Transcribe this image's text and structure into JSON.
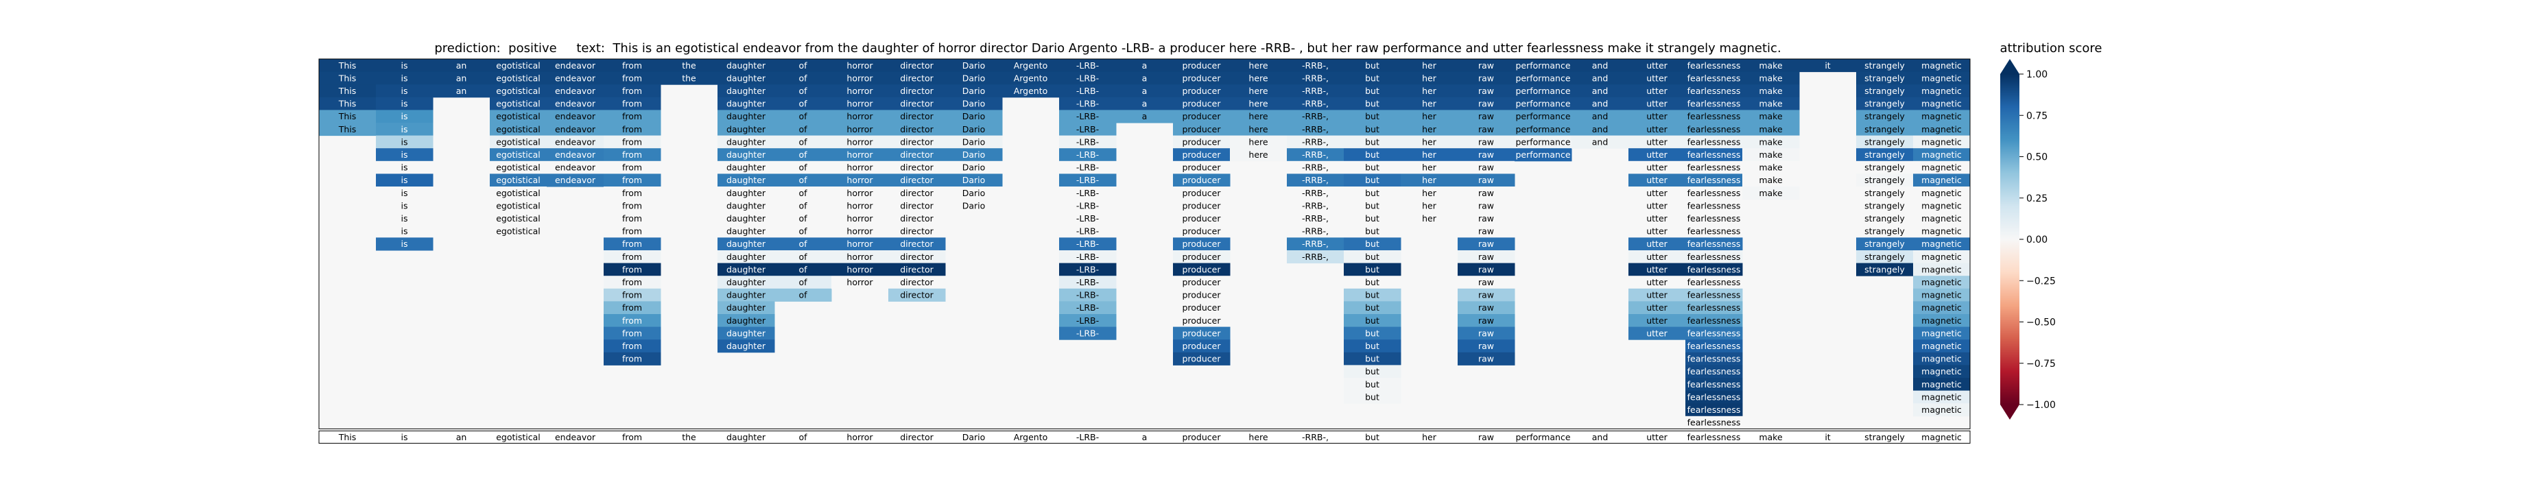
{
  "header": {
    "prediction_label": "prediction:",
    "prediction_value": "positive",
    "text_label": "text:",
    "text_value": "This is an egotistical endeavor from the daughter of horror director Dario Argento -LRB- a producer here -RRB- , but her raw performance and utter fearlessness make it strangely magnetic."
  },
  "colorbar": {
    "title": "attribution score",
    "ticks": [
      "1.00",
      "0.75",
      "0.50",
      "0.25",
      "0.00",
      "−0.25",
      "−0.50",
      "−0.75",
      "−1.00"
    ],
    "colormap": [
      "#67001f",
      "#b2182b",
      "#d6604d",
      "#f4a582",
      "#fddbc7",
      "#f7f7f7",
      "#d1e5f0",
      "#92c5de",
      "#4393c3",
      "#2166ac",
      "#053061"
    ]
  },
  "chart_data": {
    "type": "heatmap",
    "tokens": [
      "This",
      "is",
      "an",
      "egotistical",
      "endeavor",
      "from",
      "the",
      "daughter",
      "of",
      "horror",
      "director",
      "Dario",
      "Argento",
      "-LRB-",
      "a",
      "producer",
      "here",
      "-RRB-,",
      "but",
      "her",
      "raw",
      "performance",
      "and",
      "utter",
      "fearlessness",
      "make",
      "it",
      "strangely",
      "magnetic"
    ],
    "bottom_row": [
      "This",
      "is",
      "an",
      "egotistical",
      "endeavor",
      "from",
      "the",
      "daughter",
      "of",
      "horror",
      "director",
      "Dario",
      "Argento",
      "-LRB-",
      "a",
      "producer",
      "here",
      "-RRB-,",
      "but",
      "her",
      "raw",
      "performance",
      "and",
      "utter",
      "fearlessness",
      "make",
      "it",
      "strangely",
      "magnetic"
    ],
    "value_range": [
      -1.0,
      1.0
    ],
    "columns": [
      [
        0.93,
        0.92,
        0.92,
        0.9,
        0.55,
        0.55
      ],
      [
        0.93,
        0.92,
        0.9,
        0.88,
        0.6,
        0.58,
        0.3,
        0.78,
        0,
        0.8,
        0,
        0,
        0,
        0,
        0.75
      ],
      [
        0.93,
        0.92,
        0.9
      ],
      [
        0.93,
        0.92,
        0.9,
        0.88,
        0.55,
        0.55,
        0.08,
        0.7,
        0,
        0.72,
        0,
        0,
        0,
        0
      ],
      [
        0.93,
        0.92,
        0.9,
        0.88,
        0.55,
        0.55,
        0.08,
        0.7,
        0,
        0.72
      ],
      [
        0.93,
        0.92,
        0.9,
        0.88,
        0.55,
        0.55,
        0.05,
        0.68,
        0,
        0.7,
        0,
        0,
        0,
        0,
        0.75,
        0.05,
        0.98,
        0.03,
        0.3,
        0.45,
        0.58,
        0.72,
        0.82,
        0.88
      ],
      [
        0.93,
        0.92
      ],
      [
        0.93,
        0.92,
        0.9,
        0.88,
        0.55,
        0.55,
        0.05,
        0.68,
        0,
        0.7,
        0,
        0,
        0,
        0,
        0.75,
        0.05,
        0.98,
        0.1,
        0.4,
        0.45,
        0.55,
        0.72,
        0.82
      ],
      [
        0.93,
        0.92,
        0.9,
        0.88,
        0.55,
        0.55,
        0.05,
        0.68,
        0,
        0.7,
        0,
        0,
        0,
        0,
        0.75,
        0.05,
        0.98,
        0.1,
        0.4
      ],
      [
        0.93,
        0.92,
        0.9,
        0.88,
        0.55,
        0.55,
        0.05,
        0.68,
        0,
        0.7,
        0,
        0,
        0,
        0,
        0.75,
        0.05,
        0.98,
        0
      ],
      [
        0.93,
        0.92,
        0.9,
        0.88,
        0.55,
        0.55,
        0.05,
        0.68,
        0,
        0.7,
        0,
        0,
        0,
        0,
        0.75,
        0.05,
        0.98,
        0,
        0.35
      ],
      [
        0.93,
        0.92,
        0.9,
        0.88,
        0.55,
        0.55,
        0.05,
        0.68,
        0,
        0.7,
        0,
        0
      ],
      [
        0.93,
        0.92,
        0.9
      ],
      [
        0.93,
        0.92,
        0.9,
        0.88,
        0.55,
        0.55,
        0.05,
        0.68,
        0,
        0.7,
        0,
        0,
        0,
        0,
        0.75,
        0.05,
        0.98,
        0.1,
        0.4,
        0.45,
        0.55,
        0.72
      ],
      [
        0.93,
        0.92,
        0.9,
        0.88,
        0.55
      ],
      [
        0.93,
        0.92,
        0.9,
        0.88,
        0.55,
        0.55,
        0.05,
        0.78,
        0,
        0.7,
        0,
        0,
        0,
        0,
        0.75,
        0.05,
        0.98,
        0,
        0,
        0,
        0,
        0.72,
        0.82,
        0.88
      ],
      [
        0.93,
        0.92,
        0.9,
        0.88,
        0.55,
        0.55,
        0.02,
        0.02
      ],
      [
        0.93,
        0.92,
        0.9,
        0.88,
        0.55,
        0.55,
        0.05,
        0.7,
        0,
        0.72,
        0,
        0,
        0,
        0,
        0.7,
        0.22
      ],
      [
        0.93,
        0.92,
        0.9,
        0.88,
        0.55,
        0.55,
        0.05,
        0.8,
        0,
        0.75,
        0,
        0,
        0,
        0,
        0.75,
        0.05,
        0.98,
        0,
        0.35,
        0.45,
        0.55,
        0.72,
        0.82,
        0.88,
        0.05,
        0.02,
        0.02
      ],
      [
        0.93,
        0.92,
        0.9,
        0.88,
        0.55,
        0.55,
        0.05,
        0.8,
        0,
        0.72,
        0,
        0,
        0
      ],
      [
        0.93,
        0.92,
        0.9,
        0.88,
        0.55,
        0.55,
        0.05,
        0.8,
        0,
        0.72,
        0,
        0,
        0,
        0,
        0.75,
        0.05,
        0.98,
        0,
        0.35,
        0.45,
        0.55,
        0.72,
        0.82,
        0.88
      ],
      [
        0.93,
        0.92,
        0.9,
        0.88,
        0.55,
        0.55,
        0.03,
        0.8
      ],
      [
        0.93,
        0.92,
        0.9,
        0.88,
        0.55,
        0.55,
        0.05
      ],
      [
        0.93,
        0.92,
        0.9,
        0.88,
        0.55,
        0.55,
        0.05,
        0.8,
        0,
        0.72,
        0,
        0,
        0,
        0,
        0.75,
        0.05,
        0.98,
        0,
        0.35,
        0.45,
        0.55,
        0.72
      ],
      [
        0.93,
        0.92,
        0.9,
        0.88,
        0.55,
        0.55,
        0.05,
        0.8,
        0,
        0.72,
        0,
        0,
        0,
        0,
        0.75,
        0.05,
        0.98,
        0,
        0.35,
        0.45,
        0.55,
        0.72,
        0.82,
        0.88,
        0.9,
        0.92,
        0.95,
        0.96,
        0
      ],
      [
        0.93,
        0.92,
        0.9,
        0.88,
        0.55,
        0.55,
        0.05,
        0.02,
        0,
        0,
        0.02
      ],
      [
        0.93
      ],
      [
        0.93,
        0.92,
        0.9,
        0.88,
        0.55,
        0.55,
        0.15,
        0.8,
        0,
        0.02,
        0,
        0,
        0,
        0,
        0.75,
        0.18,
        0.98
      ],
      [
        0.93,
        0.92,
        0.9,
        0.88,
        0.55,
        0.55,
        0.05,
        0.7,
        0,
        0.72,
        0,
        0,
        0,
        0,
        0.75,
        0.05,
        0.08,
        0.35,
        0.42,
        0.5,
        0.55,
        0.72,
        0.82,
        0.88,
        0.92,
        0.95,
        0.1,
        0.05
      ]
    ]
  }
}
